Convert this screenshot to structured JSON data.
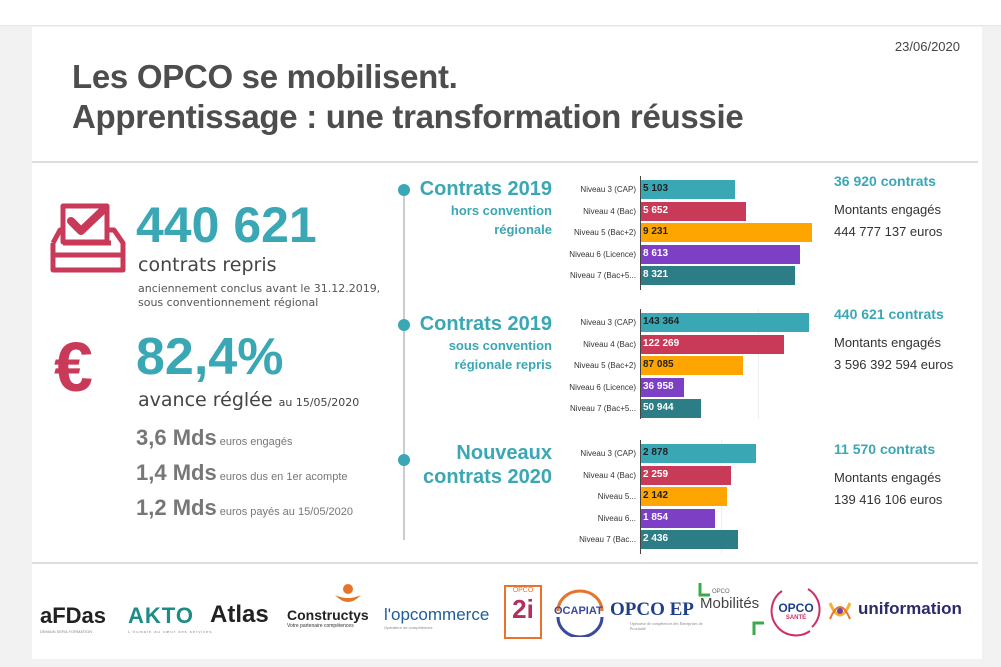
{
  "date": "23/06/2020",
  "title": {
    "line1": "Les OPCO se mobilisent.",
    "line2": "Apprentissage : une transformation réussie"
  },
  "left": {
    "contracts_number": "440 621",
    "contracts_label": "contrats repris",
    "contracts_note_line1": "anciennement conclus avant le 31.12.2019,",
    "contracts_note_line2": "sous conventionnement régional",
    "advance_pct": "82,4%",
    "advance_label": "avance réglée",
    "advance_date": "au 15/05/2020",
    "amounts": [
      {
        "value": "3,6 Mds",
        "desc": "euros engagés"
      },
      {
        "value": "1,4 Mds",
        "desc": "euros dus en 1er acompte"
      },
      {
        "value": "1,2 Mds",
        "desc": "euros payés au 15/05/2020"
      }
    ],
    "icons": {
      "ballot": "ballot-box-check-icon",
      "euro": "euro-icon"
    }
  },
  "sections": [
    {
      "title": "Contrats 2019",
      "subtitle_line1": "hors convention",
      "subtitle_line2": "régionale",
      "contracts": "36 920 contrats",
      "amount_label": "Montants engagés",
      "amount": "444 777 137 euros"
    },
    {
      "title": "Contrats 2019",
      "subtitle_line1": "sous convention",
      "subtitle_line2": "régionale repris",
      "contracts": "440 621 contrats",
      "amount_label": "Montants engagés",
      "amount": "3 596 392 594 euros"
    },
    {
      "title_line1": "Nouveaux",
      "title_line2": "contrats 2020",
      "contracts": "11 570 contrats",
      "amount_label": "Montants engagés",
      "amount": "139 416 106 euros"
    }
  ],
  "colors": {
    "teal": "#3aa7b4",
    "crimson": "#c93a58",
    "orange": "#fea502",
    "purple": "#7d3fc4",
    "dark_teal": "#2d7d86"
  },
  "chart_data": [
    {
      "type": "bar",
      "title": "Contrats 2019 hors convention régionale",
      "orientation": "horizontal",
      "categories": [
        "Niveau 3 (CAP)",
        "Niveau 4 (Bac)",
        "Niveau 5 (Bac+2)",
        "Niveau 6 (Licence)",
        "Niveau 7 (Bac+5..."
      ],
      "values": [
        5103,
        5652,
        9231,
        8613,
        8321
      ],
      "value_labels": [
        "5 103",
        "5 652",
        "9 231",
        "8 613",
        "8 321"
      ],
      "xlim": [
        0,
        9300
      ]
    },
    {
      "type": "bar",
      "title": "Contrats 2019 sous convention régionale repris",
      "orientation": "horizontal",
      "categories": [
        "Niveau 3 (CAP)",
        "Niveau 4 (Bac)",
        "Niveau 5 (Bac+2)",
        "Niveau 6 (Licence)",
        "Niveau 7 (Bac+5..."
      ],
      "values": [
        143364,
        122269,
        87085,
        36958,
        50944
      ],
      "value_labels": [
        "143 364",
        "122 269",
        "87 085",
        "36 958",
        "50 944"
      ],
      "xlim": [
        0,
        147000
      ]
    },
    {
      "type": "bar",
      "title": "Nouveaux contrats 2020",
      "orientation": "horizontal",
      "categories": [
        "Niveau 3 (CAP)",
        "Niveau 4 (Bac)",
        "Niveau 5...",
        "Niveau 6...",
        "Niveau 7 (Bac..."
      ],
      "values": [
        2878,
        2259,
        2142,
        1854,
        2436
      ],
      "value_labels": [
        "2 878",
        "2 259",
        "2 142",
        "1 854",
        "2 436"
      ],
      "xlim": [
        0,
        4300
      ]
    }
  ],
  "logos": [
    {
      "name": "AFDAS",
      "text": "aFDas",
      "sub": "DEMAIN SERA FORMATION"
    },
    {
      "name": "AKTO",
      "text": "AKTO",
      "sub": "L'humain au cœur des services"
    },
    {
      "name": "Atlas",
      "text": "Atlas",
      "sub": ""
    },
    {
      "name": "Constructys",
      "text": "Constructys",
      "sub": "Votre partenaire compétences"
    },
    {
      "name": "L'Opcommerce",
      "text": "l'opcommerce",
      "sub": "Opérateur de compétences"
    },
    {
      "name": "OPCO 2i",
      "text": "2i",
      "sub": "OPCO"
    },
    {
      "name": "OCAPIAT",
      "text": "OCAPIAT",
      "sub": ""
    },
    {
      "name": "OPCO EP",
      "text": "OPCO EP",
      "sub": "Opérateur de compétences des Entreprises de Proximité"
    },
    {
      "name": "OPCO Mobilités",
      "text": "Mobilités",
      "sub": "OPCO"
    },
    {
      "name": "OPCO Santé",
      "text": "OPCO",
      "sub": "SANTÉ"
    },
    {
      "name": "Uniformation",
      "text": "uniformation",
      "sub": ""
    }
  ]
}
